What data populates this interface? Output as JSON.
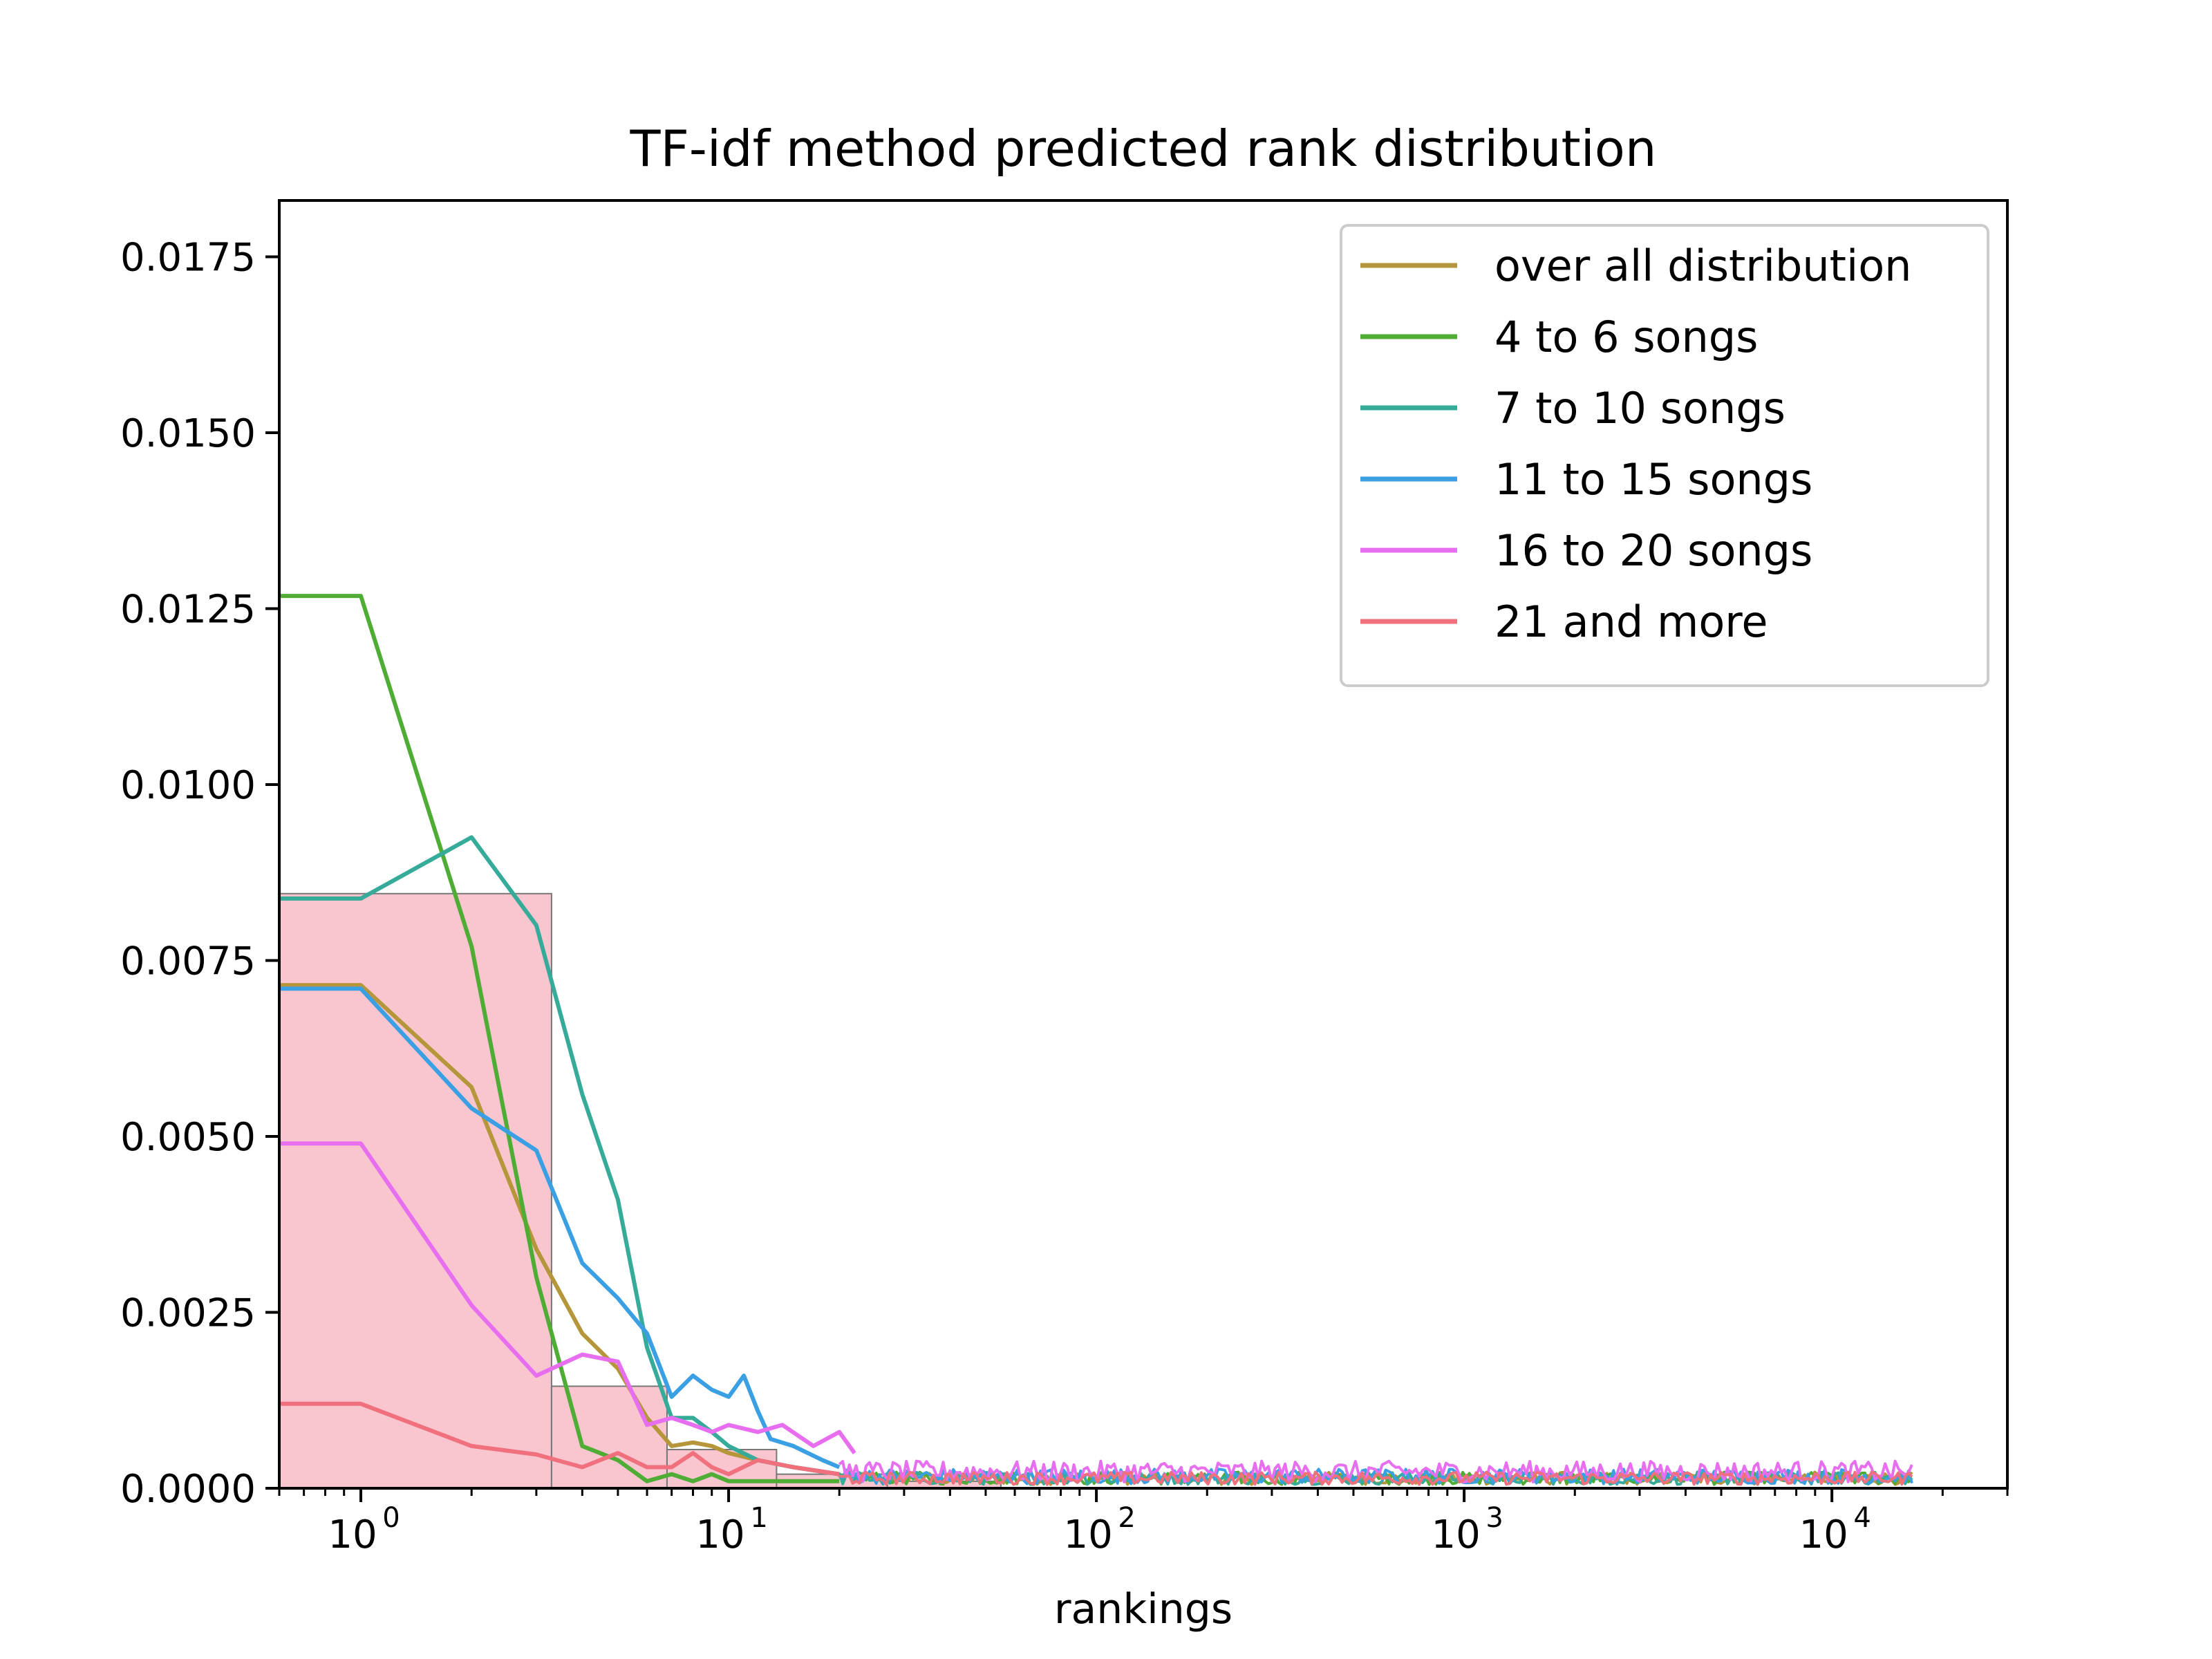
{
  "chart_data": {
    "type": "line",
    "title": "TF-idf method predicted rank distribution",
    "xlabel": "rankings",
    "ylabel": "",
    "xscale": "log",
    "xlim": [
      0.6,
      30000
    ],
    "ylim": [
      0,
      0.0183
    ],
    "grid": false,
    "legend_position": "top-right",
    "yticks": [
      0.0,
      0.0025,
      0.005,
      0.0075,
      0.01,
      0.0125,
      0.015,
      0.0175
    ],
    "ytick_labels": [
      "0.0000",
      "0.0025",
      "0.0050",
      "0.0075",
      "0.0100",
      "0.0125",
      "0.0150",
      "0.0175"
    ],
    "xticks": [
      {
        "base": "10",
        "exp": "0",
        "value": 1
      },
      {
        "base": "10",
        "exp": "1",
        "value": 10
      },
      {
        "base": "10",
        "exp": "2",
        "value": 100
      },
      {
        "base": "10",
        "exp": "3",
        "value": 1000
      },
      {
        "base": "10",
        "exp": "4",
        "value": 10000
      }
    ],
    "histogram": {
      "color": "#f9c6d0",
      "edge_color": "#777777",
      "bins": [
        {
          "x0": 0.6,
          "x1": 3.3,
          "value": 0.00845
        },
        {
          "x0": 3.3,
          "x1": 6.8,
          "value": 0.00145
        },
        {
          "x0": 6.8,
          "x1": 13.5,
          "value": 0.00055
        },
        {
          "x0": 13.5,
          "x1": 27,
          "value": 0.0002
        },
        {
          "x0": 27,
          "x1": 55,
          "value": 0.0001
        }
      ]
    },
    "noise_tail": {
      "x_start": 20,
      "x_end": 16500
    },
    "series": [
      {
        "name": "over all distribution",
        "color": "#b5963a",
        "x": [
          0.6,
          1,
          2,
          3,
          4,
          5,
          6,
          7,
          8,
          9,
          10,
          12,
          15,
          20
        ],
        "y": [
          0.00715,
          0.00715,
          0.0057,
          0.0034,
          0.0022,
          0.0017,
          0.001,
          0.0006,
          0.00065,
          0.0006,
          0.0005,
          0.0004,
          0.0003,
          0.0002
        ],
        "tail_level": 0.00015
      },
      {
        "name": "4 to 6 songs",
        "color": "#4fad36",
        "x": [
          0.6,
          1,
          2,
          3,
          4,
          5,
          6,
          7,
          8,
          9,
          10,
          12,
          15,
          20
        ],
        "y": [
          0.01268,
          0.01268,
          0.0077,
          0.003,
          0.0006,
          0.0004,
          0.0001,
          0.0002,
          0.0001,
          0.0002,
          0.0001,
          0.0001,
          0.0001,
          0.0001
        ],
        "tail_level": 0.00015
      },
      {
        "name": "7 to 10 songs",
        "color": "#36ab9a",
        "x": [
          0.6,
          1,
          2,
          3,
          4,
          5,
          6,
          7,
          8,
          9,
          10,
          12,
          15,
          20
        ],
        "y": [
          0.00838,
          0.00838,
          0.00925,
          0.008,
          0.0056,
          0.0041,
          0.002,
          0.001,
          0.001,
          0.0008,
          0.0006,
          0.0004,
          0.0003,
          0.0002
        ],
        "tail_level": 0.00015
      },
      {
        "name": "11 to 15 songs",
        "color": "#3aa0e3",
        "x": [
          0.6,
          1,
          2,
          3,
          4,
          5,
          6,
          7,
          8,
          9,
          10,
          11,
          12,
          13,
          15,
          18,
          20
        ],
        "y": [
          0.0071,
          0.0071,
          0.0054,
          0.0048,
          0.0032,
          0.0027,
          0.0022,
          0.0013,
          0.0016,
          0.0014,
          0.0013,
          0.0016,
          0.0011,
          0.0007,
          0.0006,
          0.0004,
          0.0003
        ],
        "tail_level": 0.00018
      },
      {
        "name": "16 to 20 songs",
        "color": "#e86ef0",
        "x": [
          0.6,
          1,
          2,
          3,
          4,
          5,
          6,
          7,
          8,
          9,
          10,
          12,
          14,
          17,
          20,
          22
        ],
        "y": [
          0.0049,
          0.0049,
          0.0026,
          0.0016,
          0.0019,
          0.0018,
          0.0009,
          0.001,
          0.0009,
          0.0008,
          0.0009,
          0.0008,
          0.0009,
          0.0006,
          0.0008,
          0.0005
        ],
        "tail_level": 0.00025
      },
      {
        "name": "21 and more",
        "color": "#f0707e",
        "x": [
          0.6,
          1,
          2,
          3,
          4,
          5,
          6,
          7,
          8,
          9,
          10,
          12,
          15,
          20
        ],
        "y": [
          0.0012,
          0.0012,
          0.0006,
          0.00048,
          0.0003,
          0.0005,
          0.0003,
          0.0003,
          0.0005,
          0.0003,
          0.0002,
          0.0004,
          0.0003,
          0.0002
        ],
        "tail_level": 0.00015
      }
    ]
  }
}
